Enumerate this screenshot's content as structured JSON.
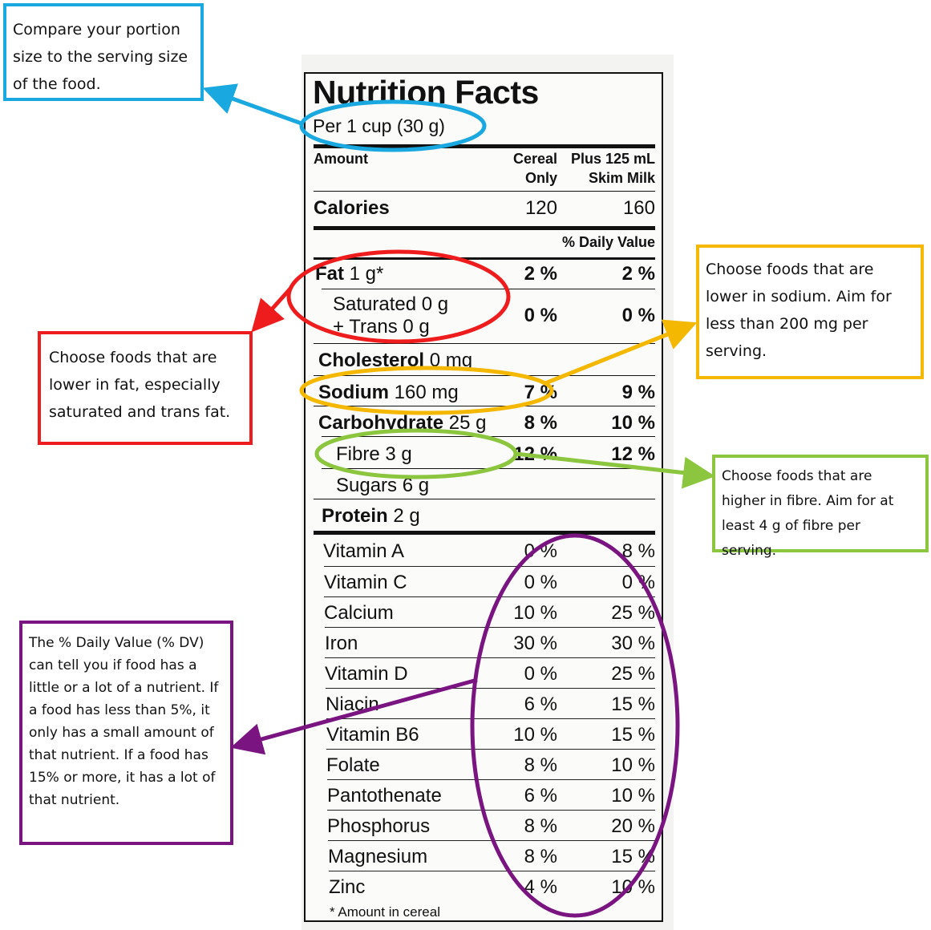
{
  "label": {
    "title": "Nutrition Facts",
    "serving": "Per 1 cup (30 g)",
    "amount_header": "Amount",
    "col1_header_line1": "Cereal",
    "col1_header_line2": "Only",
    "col2_header_line1": "Plus 125 mL",
    "col2_header_line2": "Skim Milk",
    "calories_label": "Calories",
    "calories_col1": "120",
    "calories_col2": "160",
    "daily_value_header": "% Daily Value",
    "fat_name": "Fat",
    "fat_amount": " 1 g*",
    "fat_col1": "2 %",
    "fat_col2": "2 %",
    "sat_line1": "Saturated 0 g",
    "sat_line2": "+ Trans 0 g",
    "sat_col1": "0 %",
    "sat_col2": "0 %",
    "chol_name": "Cholesterol",
    "chol_amount": " 0 mg",
    "sodium_name": "Sodium",
    "sodium_amount": " 160 mg",
    "sodium_col1": "7 %",
    "sodium_col2": "9 %",
    "carb_name": "Carbohydrate",
    "carb_amount": " 25 g",
    "carb_col1": "8 %",
    "carb_col2": "10 %",
    "fibre_label": "Fibre 3 g",
    "fibre_col1": "12 %",
    "fibre_col2": "12 %",
    "sugars_label": "Sugars 6 g",
    "protein_name": "Protein",
    "protein_amount": " 2 g",
    "vitamins": [
      {
        "name": "Vitamin A",
        "col1": "0 %",
        "col2": "8 %"
      },
      {
        "name": "Vitamin C",
        "col1": "0 %",
        "col2": "0 %"
      },
      {
        "name": "Calcium",
        "col1": "10 %",
        "col2": "25 %"
      },
      {
        "name": "Iron",
        "col1": "30 %",
        "col2": "30 %"
      },
      {
        "name": "Vitamin D",
        "col1": "0 %",
        "col2": "25 %"
      },
      {
        "name": "Niacin",
        "col1": "6 %",
        "col2": "15 %"
      },
      {
        "name": "Vitamin B6",
        "col1": "10 %",
        "col2": "15 %"
      },
      {
        "name": "Folate",
        "col1": "8 %",
        "col2": "10 %"
      },
      {
        "name": "Pantothenate",
        "col1": "6 %",
        "col2": "10 %"
      },
      {
        "name": "Phosphorus",
        "col1": "8 %",
        "col2": "20 %"
      },
      {
        "name": "Magnesium",
        "col1": "8 %",
        "col2": "15 %"
      },
      {
        "name": "Zinc",
        "col1": "4 %",
        "col2": "10 %"
      }
    ],
    "footnote": "* Amount in cereal"
  },
  "callouts": {
    "serving": "Compare your portion size to the serving size of the food.",
    "fat": "Choose foods that are lower in fat, especially saturated and trans fat.",
    "sodium": "Choose foods that are lower in sodium. Aim for less than 200 mg per serving.",
    "fibre": "Choose foods that are higher in fibre. Aim for at least 4 g of fibre per serving.",
    "dv": "The % Daily Value (% DV) can tell you if food has a little or a lot of a nutrient. If a food has less than 5%, it only has a small amount of that nutrient. If a food has 15% or more, it has a lot of that nutrient."
  },
  "colors": {
    "blue": "#1aa8e0",
    "red": "#ee1c1c",
    "orange": "#f5b800",
    "green": "#8cc63f",
    "purple": "#7a1480"
  }
}
